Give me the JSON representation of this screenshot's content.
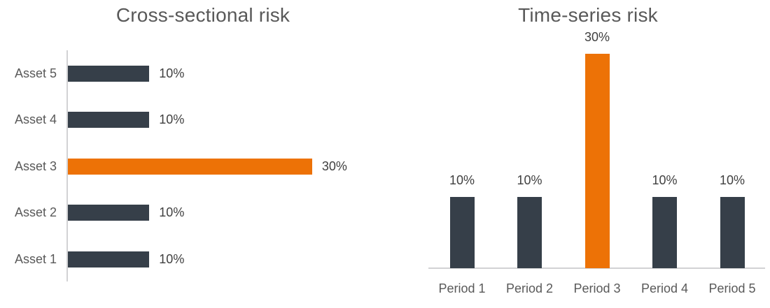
{
  "colors": {
    "bar_default": "#363f49",
    "bar_highlight": "#ed7206",
    "axis_line": "#d2d2d4",
    "title_text": "#595959",
    "category_text": "#595959",
    "value_text": "#404040",
    "background": "#ffffff"
  },
  "chart_data": [
    {
      "type": "bar",
      "orientation": "horizontal",
      "title": "Cross-sectional risk",
      "categories": [
        "Asset 5",
        "Asset 4",
        "Asset 3",
        "Asset 2",
        "Asset 1"
      ],
      "values": [
        10,
        10,
        30,
        10,
        10
      ],
      "value_labels": [
        "10%",
        "10%",
        "30%",
        "10%",
        "10%"
      ],
      "highlight_index": 2,
      "xlabel": "",
      "ylabel": "",
      "xlim": [
        0,
        30
      ],
      "grid": false,
      "legend": false,
      "axis_shown": "y-only"
    },
    {
      "type": "bar",
      "orientation": "vertical",
      "title": "Time-series risk",
      "categories": [
        "Period 1",
        "Period 2",
        "Period 3",
        "Period 4",
        "Period 5"
      ],
      "values": [
        10,
        10,
        30,
        10,
        10
      ],
      "value_labels": [
        "10%",
        "10%",
        "30%",
        "10%",
        "10%"
      ],
      "highlight_index": 2,
      "xlabel": "",
      "ylabel": "",
      "ylim": [
        0,
        30
      ],
      "grid": false,
      "legend": false,
      "axis_shown": "x-only"
    }
  ]
}
